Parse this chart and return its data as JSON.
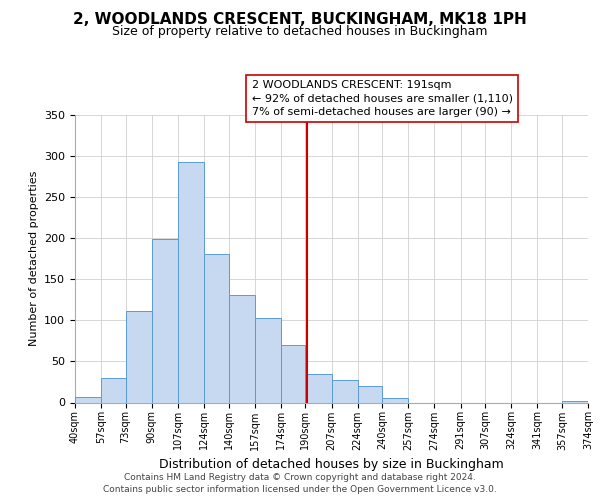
{
  "title": "2, WOODLANDS CRESCENT, BUCKINGHAM, MK18 1PH",
  "subtitle": "Size of property relative to detached houses in Buckingham",
  "xlabel": "Distribution of detached houses by size in Buckingham",
  "ylabel": "Number of detached properties",
  "bar_edges": [
    40,
    57,
    73,
    90,
    107,
    124,
    140,
    157,
    174,
    190,
    207,
    224,
    240,
    257,
    274,
    291,
    307,
    324,
    341,
    357,
    374
  ],
  "bar_heights": [
    7,
    30,
    112,
    199,
    293,
    181,
    131,
    103,
    70,
    35,
    27,
    20,
    5,
    0,
    0,
    0,
    0,
    0,
    0,
    2
  ],
  "bar_color": "#c6d9f0",
  "bar_edge_color": "#5b9bd5",
  "property_line_x": 191,
  "property_line_color": "#cc0000",
  "annotation_line1": "2 WOODLANDS CRESCENT: 191sqm",
  "annotation_line2": "← 92% of detached houses are smaller (1,110)",
  "annotation_line3": "7% of semi-detached houses are larger (90) →",
  "annotation_box_color": "#ffffff",
  "annotation_box_edge_color": "#cc0000",
  "ylim": [
    0,
    350
  ],
  "yticks": [
    0,
    50,
    100,
    150,
    200,
    250,
    300,
    350
  ],
  "tick_labels": [
    "40sqm",
    "57sqm",
    "73sqm",
    "90sqm",
    "107sqm",
    "124sqm",
    "140sqm",
    "157sqm",
    "174sqm",
    "190sqm",
    "207sqm",
    "224sqm",
    "240sqm",
    "257sqm",
    "274sqm",
    "291sqm",
    "307sqm",
    "324sqm",
    "341sqm",
    "357sqm",
    "374sqm"
  ],
  "footer_line1": "Contains HM Land Registry data © Crown copyright and database right 2024.",
  "footer_line2": "Contains public sector information licensed under the Open Government Licence v3.0.",
  "background_color": "#ffffff",
  "grid_color": "#d0d0d0",
  "title_fontsize": 11,
  "subtitle_fontsize": 9,
  "ylabel_fontsize": 8,
  "xlabel_fontsize": 9,
  "ytick_fontsize": 8,
  "xtick_fontsize": 7,
  "annotation_fontsize": 8,
  "footer_fontsize": 6.5
}
